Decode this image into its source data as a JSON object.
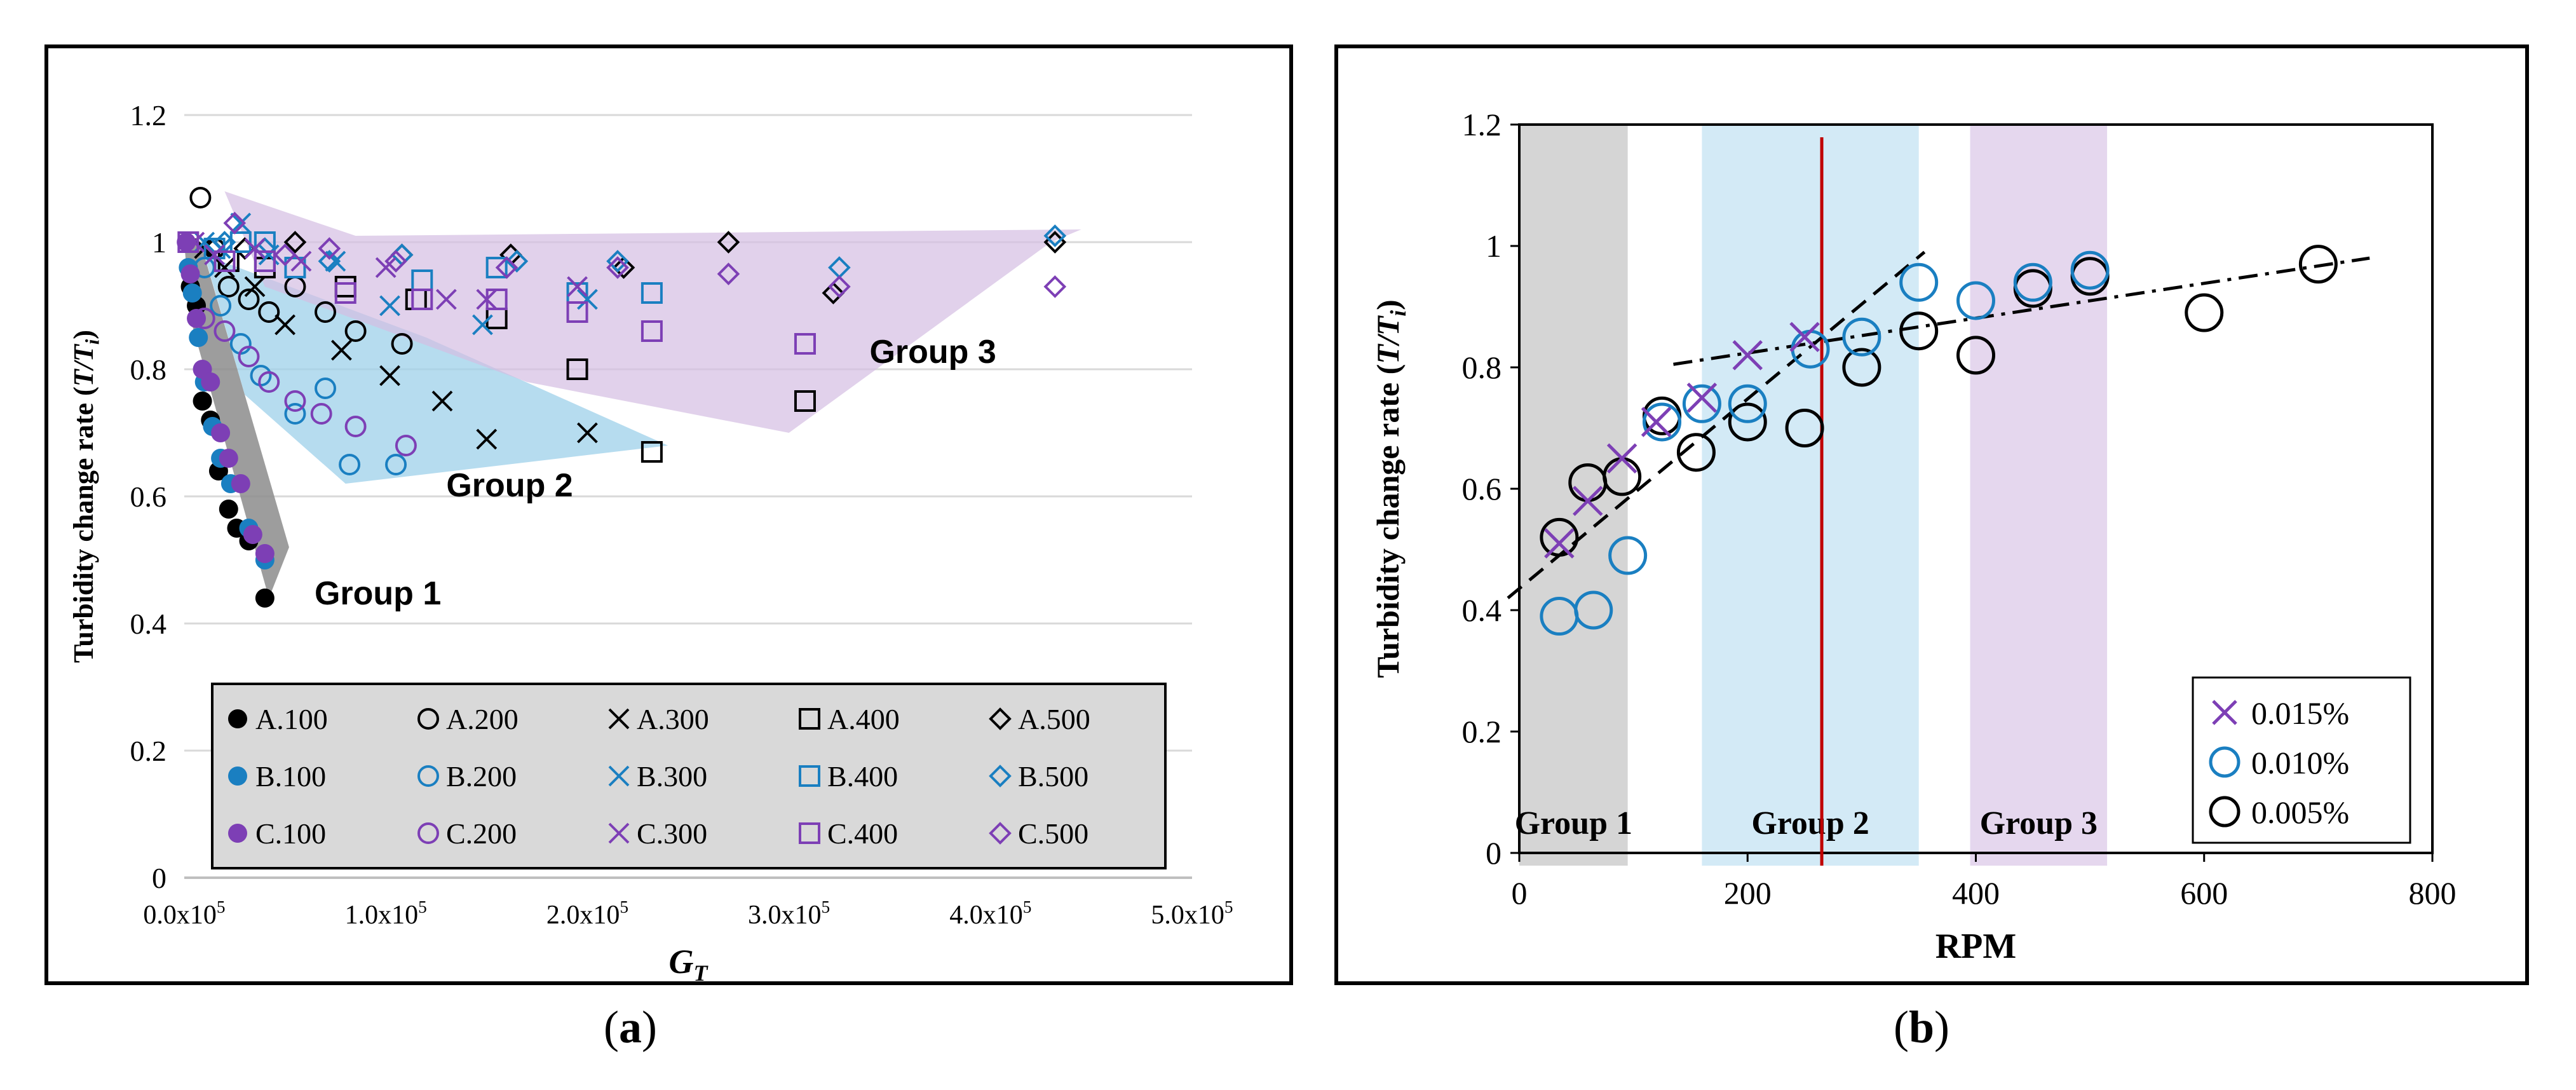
{
  "captions": {
    "a_open": "(",
    "a_letter": "a",
    "a_close": ")",
    "b_open": "(",
    "b_letter": "b",
    "b_close": ")"
  },
  "colors": {
    "black": "#000000",
    "blue": "#1a7fc1",
    "purple": "#7d3fb5",
    "red": "#c00000",
    "gray_band": "#a6a6a6",
    "blue_band": "#9dd0ea",
    "purple_band": "#d9c3e6",
    "legend_bg": "#d9d9d9"
  },
  "chart_data": [
    {
      "type": "scatter",
      "panel": "a",
      "ylabel": "Turbidity change rate (T/Ti)",
      "xlabel": "GT",
      "xlim": [
        0,
        500000
      ],
      "ylim": [
        0,
        1.2
      ],
      "x_tick_labels": [
        "0.0x10^5",
        "1.0x10^5",
        "2.0x10^5",
        "3.0x10^5",
        "4.0x10^5",
        "5.0x10^5"
      ],
      "x_ticks": [
        0,
        100000,
        200000,
        300000,
        400000,
        500000
      ],
      "y_ticks": [
        0,
        0.2,
        0.4,
        0.6,
        0.8,
        1,
        1.2
      ],
      "y_tick_labels": [
        "0",
        "0.2",
        "0.4",
        "0.6",
        "0.8",
        "1",
        "1.2"
      ],
      "grid": "horizontal",
      "legend_position": "bottom",
      "regions": [
        {
          "label": "Group 1",
          "color": "gray",
          "polygon": [
            [
              0,
              1.0
            ],
            [
              8000,
              1.0
            ],
            [
              52000,
              0.52
            ],
            [
              42000,
              0.44
            ],
            [
              3000,
              0.88
            ]
          ],
          "label_at": [
            52000,
            0.44
          ]
        },
        {
          "label": "Group 2",
          "color": "blue",
          "polygon": [
            [
              10000,
              0.98
            ],
            [
              120000,
              0.85
            ],
            [
              240000,
              0.68
            ],
            [
              80000,
              0.62
            ],
            [
              30000,
              0.76
            ]
          ],
          "label_at": [
            130000,
            0.6
          ]
        },
        {
          "label": "Group 3",
          "color": "purple",
          "polygon": [
            [
              20000,
              1.08
            ],
            [
              85000,
              1.01
            ],
            [
              445000,
              1.02
            ],
            [
              430000,
              1.0
            ],
            [
              300000,
              0.7
            ],
            [
              170000,
              0.78
            ],
            [
              75000,
              0.89
            ],
            [
              40000,
              0.93
            ]
          ],
          "label_at": [
            340000,
            0.81
          ]
        }
      ],
      "series": [
        {
          "name": "A.100",
          "marker": "dot",
          "color": "black",
          "points": [
            [
              3000,
              0.93
            ],
            [
              6000,
              0.9
            ],
            [
              9000,
              0.75
            ],
            [
              13000,
              0.72
            ],
            [
              17000,
              0.64
            ],
            [
              22000,
              0.58
            ],
            [
              26000,
              0.55
            ],
            [
              32000,
              0.53
            ],
            [
              40000,
              0.44
            ]
          ]
        },
        {
          "name": "A.200",
          "marker": "circle",
          "color": "black",
          "points": [
            [
              8000,
              1.07
            ],
            [
              15000,
              0.99
            ],
            [
              22000,
              0.93
            ],
            [
              32000,
              0.91
            ],
            [
              42000,
              0.89
            ],
            [
              55000,
              0.93
            ],
            [
              70000,
              0.89
            ],
            [
              85000,
              0.86
            ],
            [
              108000,
              0.84
            ]
          ]
        },
        {
          "name": "A.300",
          "marker": "x",
          "color": "black",
          "points": [
            [
              10000,
              0.99
            ],
            [
              20000,
              0.96
            ],
            [
              35000,
              0.93
            ],
            [
              50000,
              0.87
            ],
            [
              78000,
              0.83
            ],
            [
              102000,
              0.79
            ],
            [
              128000,
              0.75
            ],
            [
              150000,
              0.69
            ],
            [
              200000,
              0.7
            ]
          ]
        },
        {
          "name": "A.400",
          "marker": "square",
          "color": "black",
          "points": [
            [
              22000,
              0.97
            ],
            [
              40000,
              0.96
            ],
            [
              80000,
              0.93
            ],
            [
              115000,
              0.91
            ],
            [
              155000,
              0.88
            ],
            [
              195000,
              0.8
            ],
            [
              232000,
              0.67
            ],
            [
              308000,
              0.75
            ]
          ]
        },
        {
          "name": "A.500",
          "marker": "diamond",
          "color": "black",
          "points": [
            [
              30000,
              0.99
            ],
            [
              55000,
              1.0
            ],
            [
              108000,
              0.98
            ],
            [
              162000,
              0.98
            ],
            [
              218000,
              0.96
            ],
            [
              270000,
              1.0
            ],
            [
              322000,
              0.92
            ],
            [
              432000,
              1.0
            ]
          ]
        },
        {
          "name": "B.100",
          "marker": "dot",
          "color": "blue",
          "points": [
            [
              2000,
              0.96
            ],
            [
              4000,
              0.92
            ],
            [
              7000,
              0.85
            ],
            [
              10000,
              0.78
            ],
            [
              14000,
              0.71
            ],
            [
              18000,
              0.66
            ],
            [
              23000,
              0.62
            ],
            [
              32000,
              0.55
            ],
            [
              40000,
              0.5
            ]
          ]
        },
        {
          "name": "B.200",
          "marker": "circle",
          "color": "blue",
          "points": [
            [
              10000,
              0.96
            ],
            [
              18000,
              0.9
            ],
            [
              28000,
              0.84
            ],
            [
              38000,
              0.79
            ],
            [
              55000,
              0.73
            ],
            [
              70000,
              0.77
            ],
            [
              82000,
              0.65
            ],
            [
              105000,
              0.65
            ]
          ]
        },
        {
          "name": "B.300",
          "marker": "x",
          "color": "blue",
          "points": [
            [
              10000,
              1.0
            ],
            [
              18000,
              0.99
            ],
            [
              28000,
              1.03
            ],
            [
              42000,
              0.98
            ],
            [
              75000,
              0.97
            ],
            [
              102000,
              0.9
            ],
            [
              148000,
              0.87
            ],
            [
              200000,
              0.91
            ]
          ]
        },
        {
          "name": "B.400",
          "marker": "square",
          "color": "blue",
          "points": [
            [
              15000,
              0.99
            ],
            [
              28000,
              1.0
            ],
            [
              40000,
              1.0
            ],
            [
              55000,
              0.96
            ],
            [
              118000,
              0.94
            ],
            [
              155000,
              0.96
            ],
            [
              195000,
              0.92
            ],
            [
              232000,
              0.92
            ],
            [
              308000,
              0.84
            ]
          ]
        },
        {
          "name": "B.500",
          "marker": "diamond",
          "color": "blue",
          "points": [
            [
              20000,
              1.0
            ],
            [
              40000,
              0.99
            ],
            [
              72000,
              0.97
            ],
            [
              108000,
              0.98
            ],
            [
              165000,
              0.97
            ],
            [
              215000,
              0.97
            ],
            [
              325000,
              0.96
            ],
            [
              432000,
              1.01
            ]
          ]
        },
        {
          "name": "C.100",
          "marker": "dot",
          "color": "purple",
          "points": [
            [
              1000,
              1.0
            ],
            [
              3000,
              0.95
            ],
            [
              6000,
              0.88
            ],
            [
              9000,
              0.8
            ],
            [
              13000,
              0.78
            ],
            [
              18000,
              0.7
            ],
            [
              22000,
              0.66
            ],
            [
              28000,
              0.62
            ],
            [
              34000,
              0.54
            ],
            [
              40000,
              0.51
            ]
          ]
        },
        {
          "name": "C.200",
          "marker": "circle",
          "color": "purple",
          "points": [
            [
              10000,
              0.88
            ],
            [
              20000,
              0.86
            ],
            [
              32000,
              0.82
            ],
            [
              42000,
              0.78
            ],
            [
              55000,
              0.75
            ],
            [
              68000,
              0.73
            ],
            [
              85000,
              0.71
            ],
            [
              110000,
              0.68
            ]
          ]
        },
        {
          "name": "C.300",
          "marker": "x",
          "color": "purple",
          "points": [
            [
              5000,
              1.0
            ],
            [
              15000,
              0.98
            ],
            [
              35000,
              0.99
            ],
            [
              58000,
              0.97
            ],
            [
              100000,
              0.96
            ],
            [
              130000,
              0.91
            ],
            [
              150000,
              0.91
            ],
            [
              195000,
              0.93
            ]
          ]
        },
        {
          "name": "C.400",
          "marker": "square",
          "color": "purple",
          "points": [
            [
              2000,
              1.0
            ],
            [
              20000,
              0.97
            ],
            [
              40000,
              0.97
            ],
            [
              80000,
              0.92
            ],
            [
              118000,
              0.91
            ],
            [
              155000,
              0.91
            ],
            [
              195000,
              0.89
            ],
            [
              232000,
              0.86
            ],
            [
              308000,
              0.84
            ]
          ]
        },
        {
          "name": "C.500",
          "marker": "diamond",
          "color": "purple",
          "points": [
            [
              25000,
              1.03
            ],
            [
              50000,
              0.98
            ],
            [
              72000,
              0.99
            ],
            [
              105000,
              0.97
            ],
            [
              160000,
              0.96
            ],
            [
              215000,
              0.96
            ],
            [
              270000,
              0.95
            ],
            [
              325000,
              0.93
            ],
            [
              432000,
              0.93
            ]
          ]
        }
      ]
    },
    {
      "type": "scatter",
      "panel": "b",
      "ylabel": "Turbidity change rate (T/Ti)",
      "xlabel": "RPM",
      "xlim": [
        0,
        800
      ],
      "ylim": [
        0,
        1.2
      ],
      "x_ticks": [
        0,
        200,
        400,
        600,
        800
      ],
      "x_tick_labels": [
        "0",
        "200",
        "400",
        "600",
        "800"
      ],
      "y_ticks": [
        0,
        0.2,
        0.4,
        0.6,
        0.8,
        1,
        1.2
      ],
      "y_tick_labels": [
        "0",
        "0.2",
        "0.4",
        "0.6",
        "0.8",
        "1",
        "1.2"
      ],
      "grid": "none",
      "legend_position": "bottom-right",
      "bands": [
        {
          "label": "Group 1",
          "x0": 0,
          "x1": 95,
          "color": "gray"
        },
        {
          "label": "Group 2",
          "x0": 160,
          "x1": 350,
          "color": "blue"
        },
        {
          "label": "Group 3",
          "x0": 395,
          "x1": 515,
          "color": "purple"
        }
      ],
      "vline": {
        "x": 265,
        "color": "red"
      },
      "trend_lines": [
        {
          "style": "dashed",
          "from": [
            -10,
            0.42
          ],
          "to": [
            355,
            0.99
          ]
        },
        {
          "style": "dashdot",
          "from": [
            135,
            0.805
          ],
          "to": [
            745,
            0.98
          ]
        }
      ],
      "series": [
        {
          "name": "0.015%",
          "marker": "x",
          "color": "purple",
          "points": [
            [
              35,
              0.51
            ],
            [
              60,
              0.58
            ],
            [
              90,
              0.65
            ],
            [
              120,
              0.71
            ],
            [
              160,
              0.75
            ],
            [
              200,
              0.82
            ],
            [
              250,
              0.85
            ]
          ]
        },
        {
          "name": "0.010%",
          "marker": "circle",
          "color": "blue",
          "points": [
            [
              35,
              0.39
            ],
            [
              65,
              0.4
            ],
            [
              95,
              0.49
            ],
            [
              125,
              0.71
            ],
            [
              160,
              0.74
            ],
            [
              200,
              0.74
            ],
            [
              255,
              0.83
            ],
            [
              300,
              0.85
            ],
            [
              350,
              0.94
            ],
            [
              400,
              0.91
            ],
            [
              450,
              0.94
            ],
            [
              500,
              0.96
            ]
          ]
        },
        {
          "name": "0.005%",
          "marker": "circle",
          "color": "black",
          "points": [
            [
              35,
              0.52
            ],
            [
              60,
              0.61
            ],
            [
              90,
              0.62
            ],
            [
              125,
              0.72
            ],
            [
              155,
              0.66
            ],
            [
              200,
              0.71
            ],
            [
              250,
              0.7
            ],
            [
              300,
              0.8
            ],
            [
              350,
              0.86
            ],
            [
              400,
              0.82
            ],
            [
              450,
              0.93
            ],
            [
              500,
              0.95
            ],
            [
              600,
              0.89
            ],
            [
              700,
              0.97
            ]
          ]
        }
      ]
    }
  ]
}
